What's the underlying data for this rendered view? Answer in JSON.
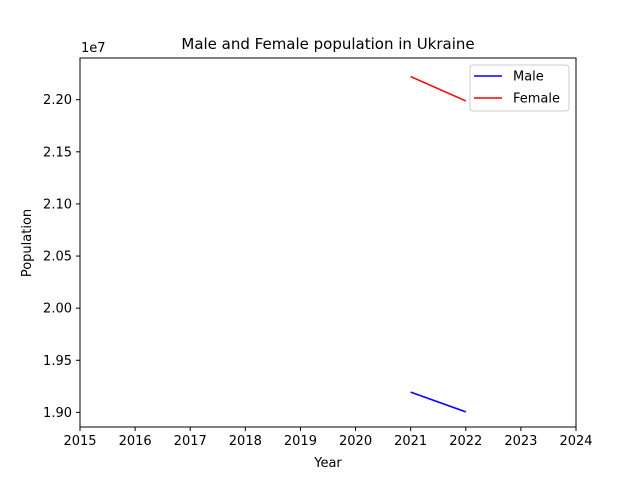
{
  "chart_data": {
    "type": "line",
    "title": "Male and Female population in Ukraine",
    "xlabel": "Year",
    "ylabel": "Population",
    "offset_label": "1e7",
    "xlim": [
      2015,
      2024
    ],
    "ylim": [
      18860000,
      22400000
    ],
    "x_ticks": [
      2015,
      2016,
      2017,
      2018,
      2019,
      2020,
      2021,
      2022,
      2023,
      2024
    ],
    "x_tick_labels": [
      "2015",
      "2016",
      "2017",
      "2018",
      "2019",
      "2020",
      "2021",
      "2022",
      "2023",
      "2024"
    ],
    "y_ticks": [
      19000000,
      19500000,
      20000000,
      20500000,
      21000000,
      21500000,
      22000000
    ],
    "y_tick_labels": [
      "1.90",
      "1.95",
      "2.00",
      "2.05",
      "2.10",
      "2.15",
      "2.20"
    ],
    "grid": false,
    "legend_position": "top-right",
    "series": [
      {
        "name": "Male",
        "color": "#0000ff",
        "x": [
          2021,
          2022
        ],
        "values": [
          19195000,
          19005000
        ]
      },
      {
        "name": "Female",
        "color": "#ff0000",
        "x": [
          2021,
          2022
        ],
        "values": [
          22222000,
          21988000
        ]
      }
    ]
  }
}
